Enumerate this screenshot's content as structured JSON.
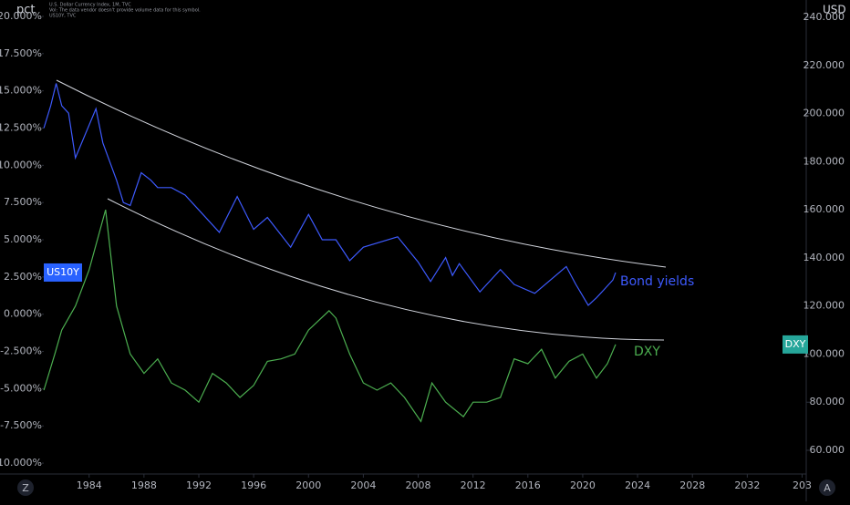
{
  "chart_data": {
    "type": "line",
    "header": [
      "U.S. Dollar Currency Index, 1M, TVC",
      "Vol: The data vendor doesn't provide volume data for this symbol.",
      "US10Y, TVC"
    ],
    "y_label": "pct",
    "y2_label": "USD",
    "annotations": [
      {
        "text": "Bond yields",
        "color": "#3d5afe"
      },
      {
        "text": "DXY",
        "color": "#4caf50"
      }
    ],
    "buttons": [
      "Z",
      "A"
    ],
    "xlim": [
      1977.5,
      2036.3
    ],
    "xticks": [
      1984,
      1988,
      1992,
      1996,
      2000,
      2004,
      2008,
      2012,
      2016,
      2020,
      2024,
      2028,
      2032,
      {
        "value": 2036,
        "label": "203"
      }
    ],
    "ylim": [
      -10.73,
      21.1
    ],
    "yticks": [
      {
        "value": -10,
        "label": "-10.000%"
      },
      {
        "value": -7.5,
        "label": "-7.500%"
      },
      {
        "value": -5,
        "label": "-5.000%"
      },
      {
        "value": -2.5,
        "label": "-2.500%"
      },
      {
        "value": 0,
        "label": "0.000%"
      },
      {
        "value": 2.5,
        "label": "2.500%"
      },
      {
        "value": 5,
        "label": "5.000%"
      },
      {
        "value": 7.5,
        "label": "7.500%"
      },
      {
        "value": 10,
        "label": "10.000%"
      },
      {
        "value": 12.5,
        "label": "12.500%"
      },
      {
        "value": 15,
        "label": "15.000%"
      },
      {
        "value": 17.5,
        "label": "17.500%"
      },
      {
        "value": 20,
        "label": "20.000%"
      }
    ],
    "y2lim": [
      50.15,
      247.2
    ],
    "y2ticks": [
      {
        "value": 60,
        "label": "60.000"
      },
      {
        "value": 80,
        "label": "80.000"
      },
      {
        "value": 100,
        "label": "100.000"
      },
      {
        "value": 120,
        "label": "120.000"
      },
      {
        "value": 140,
        "label": "140.000"
      },
      {
        "value": 160,
        "label": "160.000"
      },
      {
        "value": 180,
        "label": "180.000"
      },
      {
        "value": 200,
        "label": "200.000"
      },
      {
        "value": 220,
        "label": "220.000"
      },
      {
        "value": 240,
        "label": "240.000"
      }
    ],
    "grid": false,
    "series": [
      {
        "name": "US10Y",
        "color": "#3d5afe",
        "axis": "y",
        "x": [
          1980.7,
          1981.2,
          1981.6,
          1982,
          1982.5,
          1983,
          1984.5,
          1985,
          1986,
          1986.5,
          1987,
          1987.8,
          1988.5,
          1989,
          1990,
          1991,
          1992,
          1993.5,
          1994.8,
          1996,
          1997,
          1998.7,
          2000,
          2001,
          2002,
          2003,
          2004,
          2006.5,
          2008,
          2008.9,
          2010,
          2010.5,
          2011,
          2012.5,
          2013,
          2014,
          2015,
          2016.5,
          2018.8,
          2019.5,
          2020.4,
          2021,
          2021.5,
          2022.2,
          2022.4
        ],
        "values": [
          12.5,
          14,
          15.5,
          14,
          13.5,
          10.5,
          13.8,
          11.5,
          9,
          7.5,
          7.3,
          9.5,
          9,
          8.5,
          8.5,
          8,
          7,
          5.5,
          7.9,
          5.7,
          6.5,
          4.5,
          6.7,
          5,
          5,
          3.6,
          4.5,
          5.2,
          3.5,
          2.2,
          3.8,
          2.6,
          3.4,
          1.5,
          2,
          3,
          2,
          1.4,
          3.2,
          2,
          0.6,
          1.1,
          1.6,
          2.3,
          2.8
        ]
      },
      {
        "name": "DXY",
        "color": "#4caf50",
        "axis": "y2",
        "x": [
          1980.7,
          1981.5,
          1982,
          1983,
          1984,
          1985.2,
          1986,
          1987,
          1988,
          1989,
          1990,
          1991,
          1992,
          1993,
          1994,
          1995,
          1996,
          1997,
          1998,
          1999,
          2000,
          2001.5,
          2002,
          2003,
          2004,
          2005,
          2006,
          2007,
          2008.2,
          2009,
          2010,
          2011.3,
          2012,
          2013,
          2014,
          2015,
          2016,
          2017,
          2018,
          2019,
          2020,
          2021,
          2021.8,
          2022.4
        ],
        "values": [
          85,
          100,
          110,
          120,
          135,
          160,
          120,
          100,
          92,
          98,
          88,
          85,
          80,
          92,
          88,
          82,
          87,
          97,
          98,
          100,
          110,
          118,
          115,
          100,
          88,
          85,
          88,
          82,
          72,
          88,
          80,
          74,
          80,
          80,
          82,
          98,
          96,
          102,
          90,
          97,
          100,
          90,
          96,
          104
        ]
      }
    ]
  }
}
